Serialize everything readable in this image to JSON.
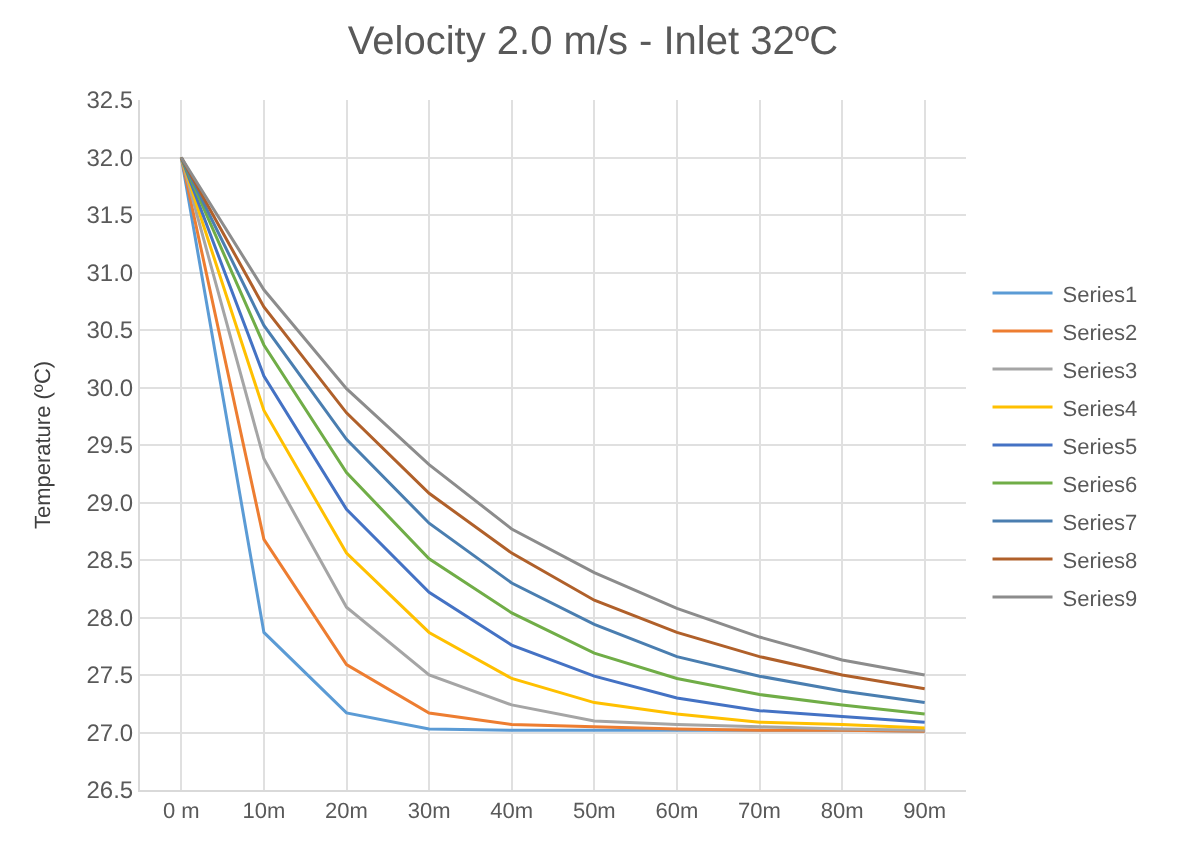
{
  "chart_data": {
    "type": "line",
    "title": "Velocity 2.0 m/s - Inlet 32ºC",
    "ylabel": "Temperature (ºC)",
    "categories": [
      "0 m",
      "10m",
      "20m",
      "30m",
      "40m",
      "50m",
      "60m",
      "70m",
      "80m",
      "90m"
    ],
    "ylim": [
      26.5,
      32.5
    ],
    "yticks": [
      {
        "value": 26.5,
        "label": "26.5"
      },
      {
        "value": 27,
        "label": "27.0"
      },
      {
        "value": 27.5,
        "label": "27.5"
      },
      {
        "value": 28,
        "label": "28.0"
      },
      {
        "value": 28.5,
        "label": "28.5"
      },
      {
        "value": 29,
        "label": "29.0"
      },
      {
        "value": 29.5,
        "label": "29.5"
      },
      {
        "value": 30,
        "label": "30.0"
      },
      {
        "value": 30.5,
        "label": "30.5"
      },
      {
        "value": 31,
        "label": "31.0"
      },
      {
        "value": 31.5,
        "label": "31.5"
      },
      {
        "value": 32,
        "label": "32.0"
      },
      {
        "value": 32.5,
        "label": "32.5"
      }
    ],
    "grid": true,
    "legend": "right",
    "marker": "none",
    "line_style": "solid",
    "series": [
      {
        "name": "Series1",
        "color": "#5b9bd5",
        "values": [
          32,
          27.87,
          27.17,
          27.03,
          27.02,
          27.02,
          27.02,
          27.02,
          27.02,
          27.01
        ]
      },
      {
        "name": "Series2",
        "color": "#ed7d31",
        "values": [
          32,
          28.68,
          27.59,
          27.17,
          27.07,
          27.05,
          27.03,
          27.02,
          27.02,
          27.01
        ]
      },
      {
        "name": "Series3",
        "color": "#a5a5a5",
        "values": [
          32,
          29.38,
          28.09,
          27.5,
          27.24,
          27.1,
          27.07,
          27.05,
          27.03,
          27.02
        ]
      },
      {
        "name": "Series4",
        "color": "#ffc000",
        "values": [
          32,
          29.8,
          28.56,
          27.87,
          27.47,
          27.26,
          27.16,
          27.09,
          27.07,
          27.04
        ]
      },
      {
        "name": "Series5",
        "color": "#4472c4",
        "values": [
          32,
          30.1,
          28.94,
          28.22,
          27.76,
          27.49,
          27.3,
          27.19,
          27.14,
          27.09
        ]
      },
      {
        "name": "Series6",
        "color": "#70ad47",
        "values": [
          32,
          30.37,
          29.26,
          28.51,
          28.04,
          27.69,
          27.47,
          27.33,
          27.24,
          27.16
        ]
      },
      {
        "name": "Series7",
        "color": "#4a7eb0",
        "values": [
          32,
          30.54,
          29.55,
          28.82,
          28.3,
          27.94,
          27.66,
          27.49,
          27.36,
          27.26
        ]
      },
      {
        "name": "Series8",
        "color": "#b0602a",
        "values": [
          32,
          30.7,
          29.78,
          29.08,
          28.56,
          28.15,
          27.87,
          27.66,
          27.5,
          27.38
        ]
      },
      {
        "name": "Series9",
        "color": "#8c8c8c",
        "values": [
          32,
          30.85,
          29.99,
          29.33,
          28.77,
          28.39,
          28.08,
          27.83,
          27.63,
          27.5
        ]
      }
    ]
  }
}
